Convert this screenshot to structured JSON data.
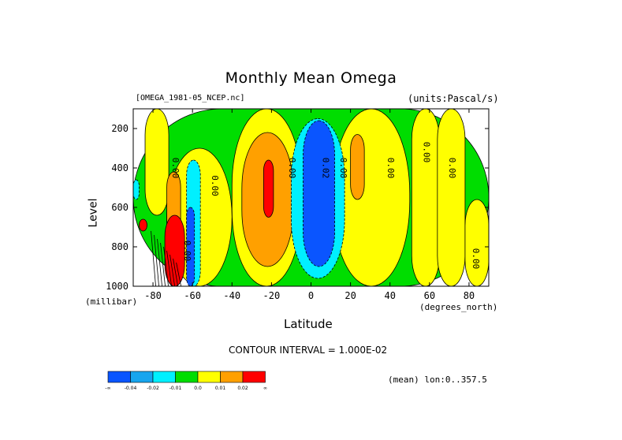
{
  "chart_data": {
    "type": "heatmap",
    "title": "Monthly Mean Omega",
    "file_label": "[OMEGA_1981-05_NCEP.nc]",
    "units_label": "(units:Pascal/s)",
    "xlabel": "Latitude",
    "x_units": "(degrees_north)",
    "ylabel": "Level",
    "y_units": "(millibar)",
    "xlim": [
      -90,
      90
    ],
    "ylim": [
      1000,
      100
    ],
    "x_ticks": [
      -80,
      -60,
      -40,
      -20,
      0,
      20,
      40,
      60,
      80
    ],
    "x_tick_labels": [
      "-80",
      "-60",
      "-40",
      "-20",
      "0",
      "20",
      "40",
      "60",
      "80"
    ],
    "y_ticks": [
      200,
      400,
      600,
      800,
      1000
    ],
    "y_tick_labels": [
      "200",
      "400",
      "600",
      "800",
      "1000"
    ],
    "contour_interval_label": "CONTOUR INTERVAL = 1.000E-02",
    "mean_label": "(mean) lon:0..357.5",
    "contour_labels": [
      {
        "text": "0.00",
        "lat": -70,
        "lev": 400
      },
      {
        "text": "0.00",
        "lat": -50,
        "lev": 490
      },
      {
        "text": "0.00",
        "lat": -11,
        "lev": 400
      },
      {
        "text": "0.02",
        "lat": 6,
        "lev": 400
      },
      {
        "text": "0.00",
        "lat": 15,
        "lev": 400
      },
      {
        "text": "0.00",
        "lat": 39,
        "lev": 400
      },
      {
        "text": "0.00",
        "lat": 57,
        "lev": 320
      },
      {
        "text": "0.00",
        "lat": 70,
        "lev": 400
      },
      {
        "text": "0.00",
        "lat": 82,
        "lev": 860
      },
      {
        "text": "0.00",
        "lat": -64,
        "lev": 820
      }
    ],
    "colorbar": {
      "colors": [
        "#0a55ff",
        "#17a5ee",
        "#00f0ff",
        "#00dd00",
        "#ffff00",
        "#ffa000",
        "#ff0000"
      ],
      "labels": [
        "-∞",
        "-0.04",
        "-0.02",
        "-0.01",
        "0.0",
        "0.01",
        "0.02",
        "∞"
      ]
    },
    "regions": [
      {
        "level": "green",
        "lat0": -90,
        "lat1": 90,
        "lev0": 100,
        "lev1": 1000
      },
      {
        "level": "yellow",
        "lat0": -84,
        "lat1": -72,
        "lev0": 100,
        "lev1": 640
      },
      {
        "level": "yellow",
        "lat0": -73,
        "lat1": -40,
        "lev0": 300,
        "lev1": 1000
      },
      {
        "level": "yellow",
        "lat0": -40,
        "lat1": -5,
        "lev0": 100,
        "lev1": 1000
      },
      {
        "level": "yellow",
        "lat0": 11,
        "lat1": 50,
        "lev0": 100,
        "lev1": 1000
      },
      {
        "level": "yellow",
        "lat0": 51,
        "lat1": 65,
        "lev0": 100,
        "lev1": 1000
      },
      {
        "level": "yellow",
        "lat0": 64,
        "lat1": 78,
        "lev0": 100,
        "lev1": 1000
      },
      {
        "level": "yellow",
        "lat0": 78,
        "lat1": 90,
        "lev0": 560,
        "lev1": 1000
      },
      {
        "level": "orange",
        "lat0": -35,
        "lat1": -9,
        "lev0": 220,
        "lev1": 900
      },
      {
        "level": "orange",
        "lat0": 20,
        "lat1": 27,
        "lev0": 230,
        "lev1": 560
      },
      {
        "level": "orange",
        "lat0": -73,
        "lat1": -66,
        "lev0": 420,
        "lev1": 1000
      },
      {
        "level": "red",
        "lat0": -24,
        "lat1": -19,
        "lev0": 360,
        "lev1": 650
      },
      {
        "level": "cyan",
        "lat0": -10,
        "lat1": 17,
        "lev0": 150,
        "lev1": 960
      },
      {
        "level": "blue",
        "lat0": -4,
        "lat1": 12,
        "lev0": 160,
        "lev1": 900
      },
      {
        "level": "cyan",
        "lat0": -63,
        "lat1": -56,
        "lev0": 360,
        "lev1": 1000
      },
      {
        "level": "blue",
        "lat0": -63,
        "lat1": -59,
        "lev0": 600,
        "lev1": 1000
      },
      {
        "level": "cyan",
        "lat0": -90,
        "lat1": -87,
        "lev0": 460,
        "lev1": 560
      },
      {
        "level": "red",
        "lat0": -74,
        "lat1": -64,
        "lev0": 640,
        "lev1": 1000
      },
      {
        "level": "red",
        "lat0": -87,
        "lat1": -83,
        "lev0": 660,
        "lev1": 720
      }
    ]
  }
}
